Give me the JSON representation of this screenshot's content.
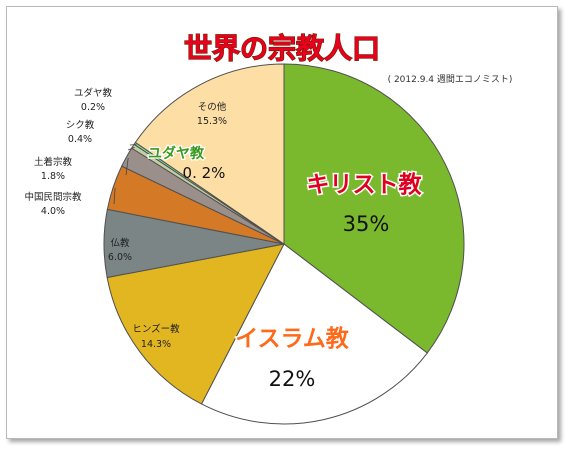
{
  "chart_data": {
    "type": "pie",
    "title": "世界の宗教人口",
    "source_note": "( 2012.9.4 週間エコノミスト)",
    "slices": [
      {
        "name": "キリスト教",
        "value": 35,
        "label": "35%",
        "color": "#7ab82e"
      },
      {
        "name": "イスラム教",
        "value": 22,
        "label": "22%",
        "color": "#ffffff"
      },
      {
        "name": "ヒンズー教",
        "value": 14.3,
        "label": "14.3%",
        "color": "#e2b620"
      },
      {
        "name": "仏教",
        "value": 6.0,
        "label": "6.0%",
        "color": "#7b8585"
      },
      {
        "name": "中国民間宗教",
        "value": 4.0,
        "label": "4.0%",
        "color": "#d47a26"
      },
      {
        "name": "土着宗教",
        "value": 1.8,
        "label": "1.8%",
        "color": "#9a8f8a"
      },
      {
        "name": "シク教",
        "value": 0.4,
        "label": "0.4%",
        "color": "#c5cda2"
      },
      {
        "name": "ユダヤ教",
        "value": 0.2,
        "label": "0.2%",
        "color": "#7ee09a"
      },
      {
        "name": "その他",
        "value": 15.3,
        "label": "15.3%",
        "color": "#fddfa5"
      }
    ],
    "callout": {
      "name": "ユダヤ教",
      "label": "0. 2%"
    }
  }
}
